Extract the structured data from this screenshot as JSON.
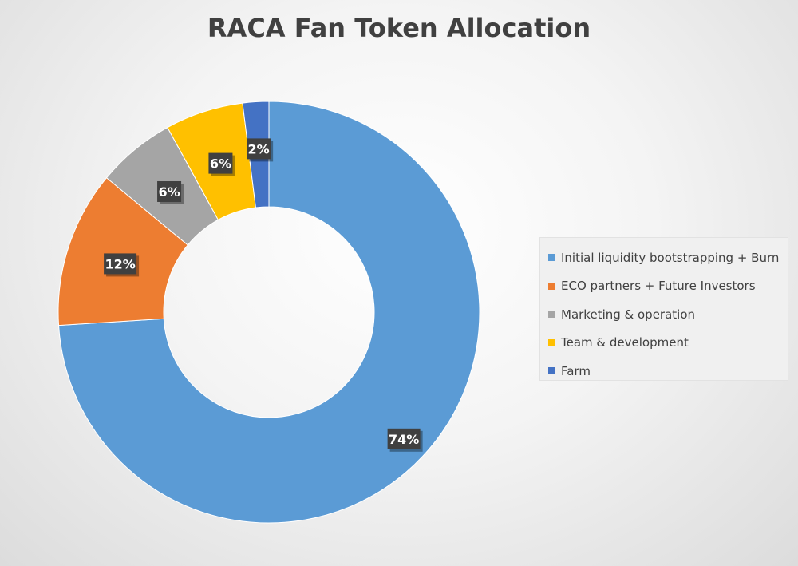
{
  "chart_data": {
    "type": "pie",
    "title": "RACA Fan Token Allocation",
    "donut": true,
    "legend_position": "right",
    "slices": [
      {
        "label": "Initial liquidity bootstrapping + Burn",
        "value": 74,
        "display": "74%",
        "color": "#5B9BD5"
      },
      {
        "label": "ECO partners + Future Investors",
        "value": 12,
        "display": "12%",
        "color": "#ED7D31"
      },
      {
        "label": "Marketing & operation",
        "value": 6,
        "display": "6%",
        "color": "#A5A5A5"
      },
      {
        "label": "Team & development",
        "value": 6,
        "display": "6%",
        "color": "#FFC000"
      },
      {
        "label": "Farm",
        "value": 2,
        "display": "2%",
        "color": "#4472C4"
      }
    ]
  }
}
